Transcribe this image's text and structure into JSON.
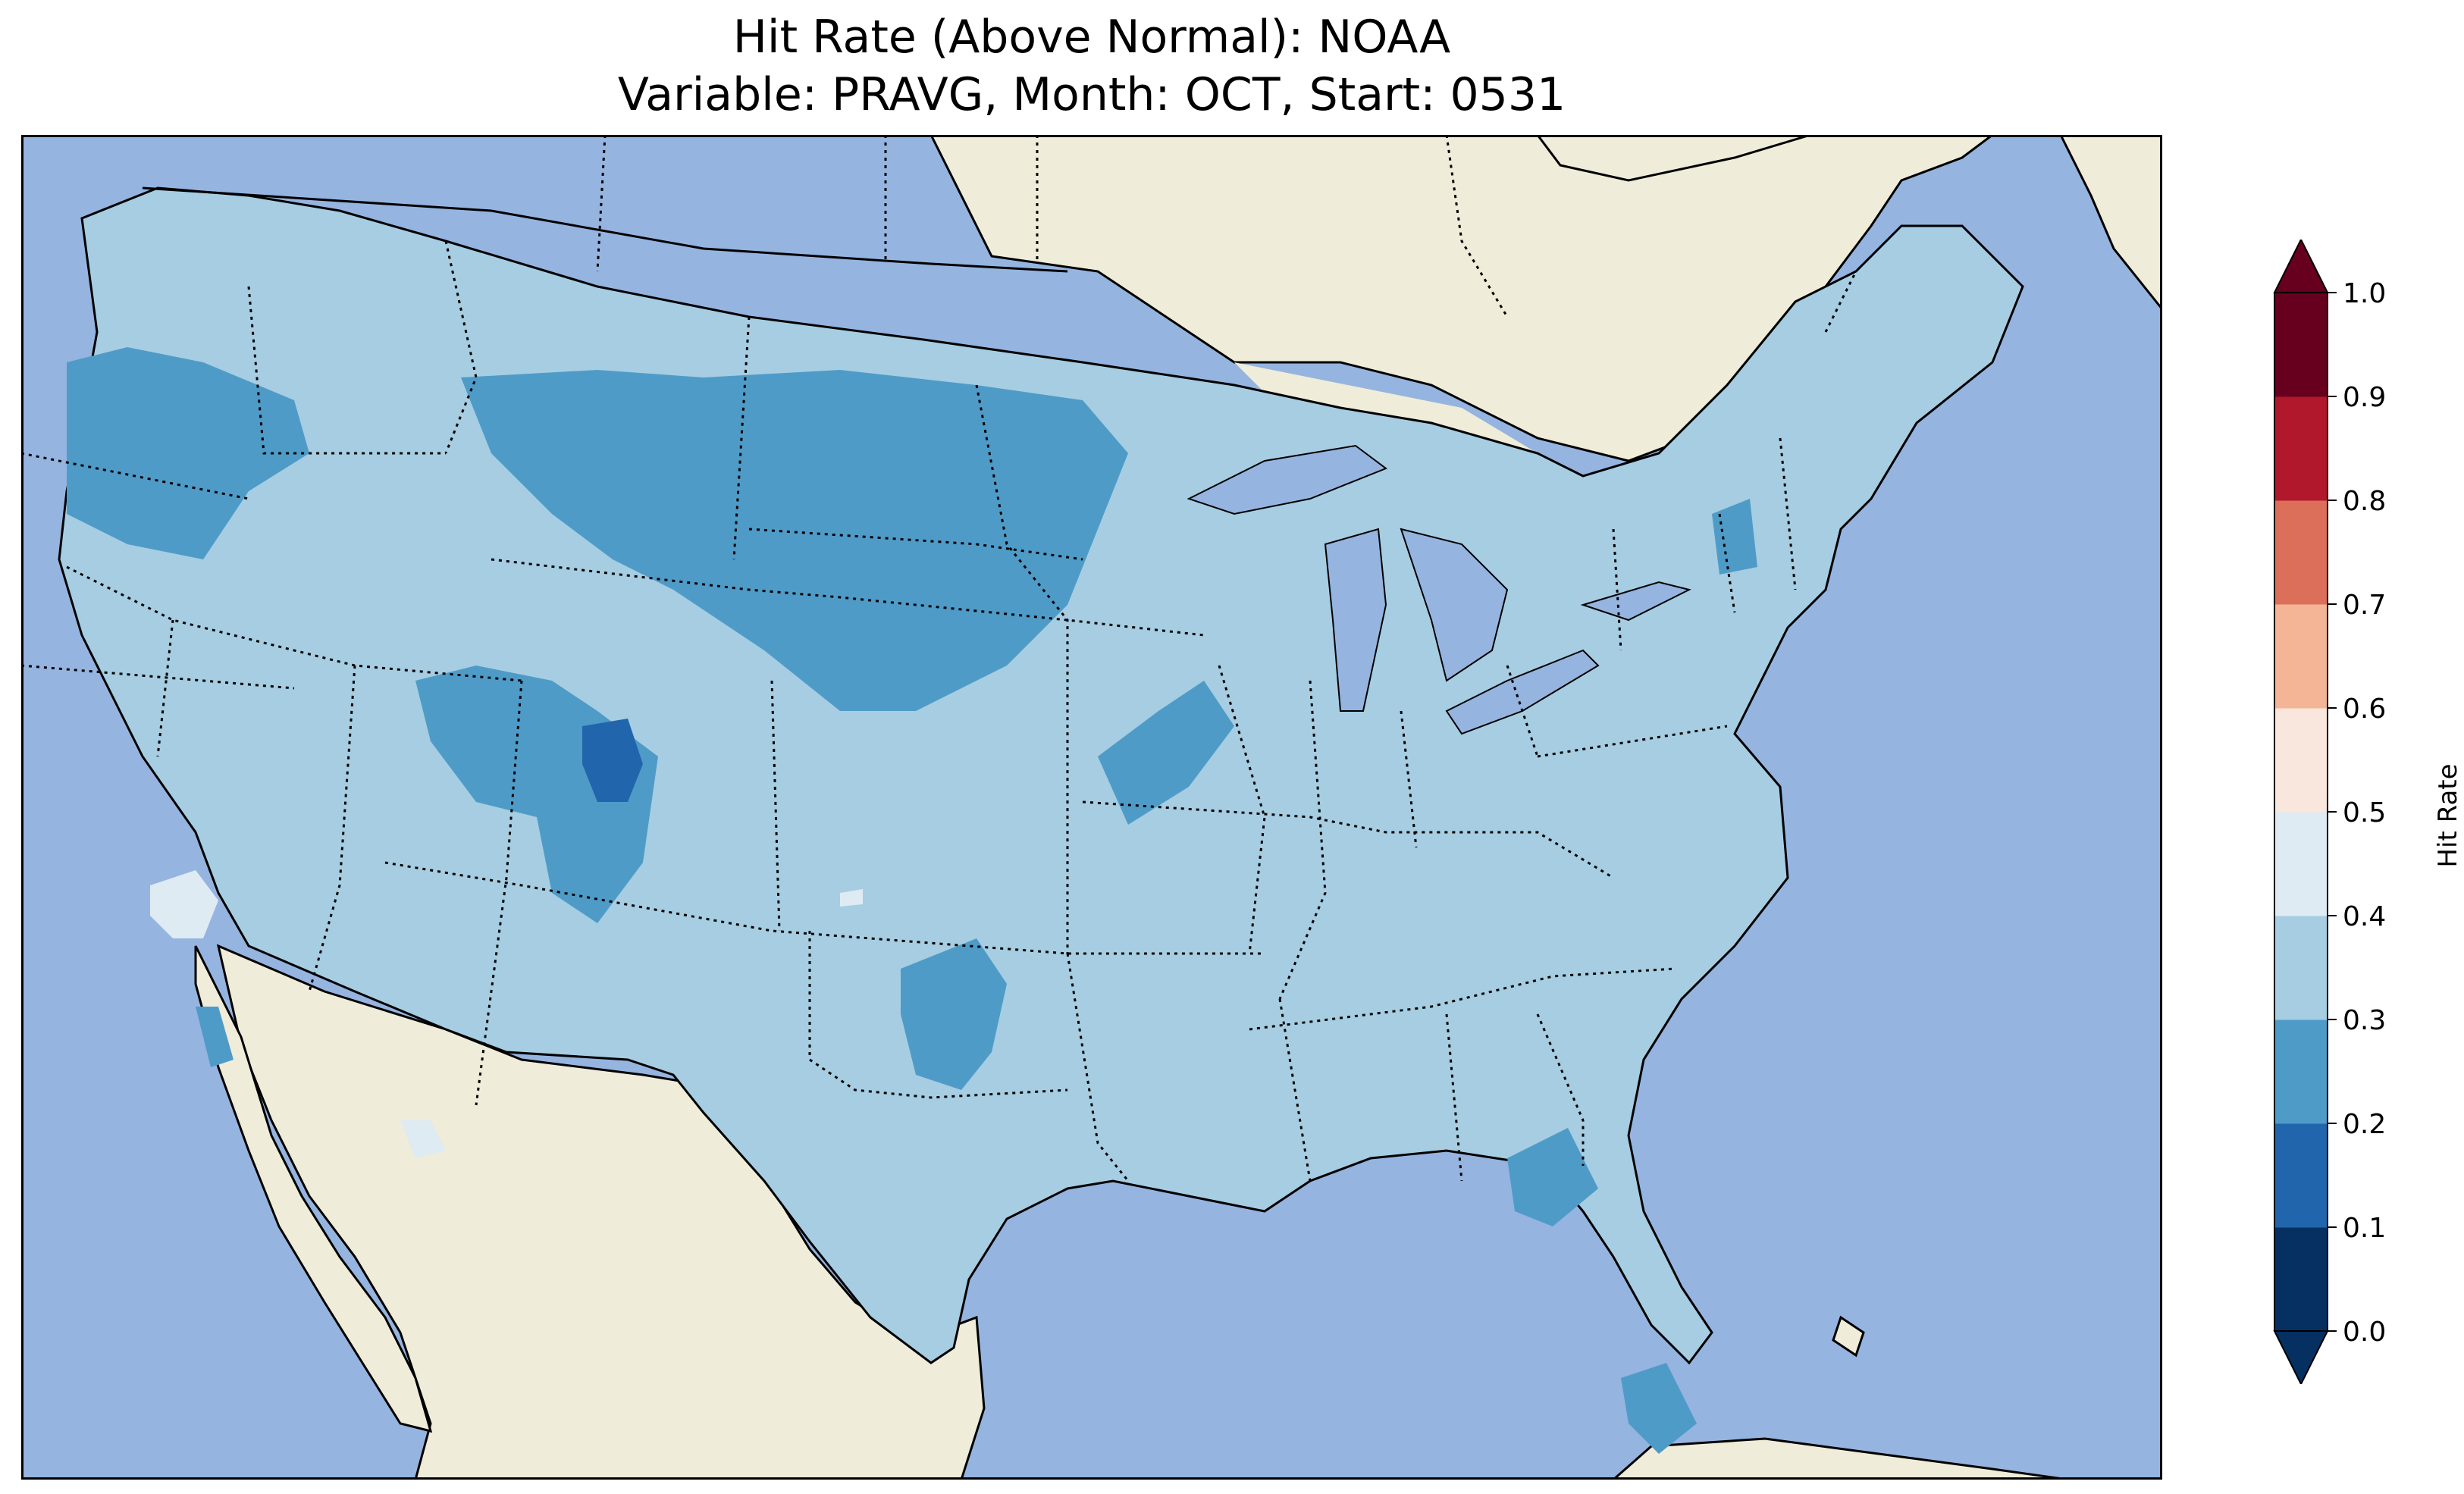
{
  "title_line1": "Hit Rate (Above Normal): NOAA",
  "title_line2": "Variable: PRAVG, Month: OCT, Start: 0531",
  "colors": {
    "ocean": "#95b4e0",
    "land": "#efecd9",
    "lakes": "#95b4e0"
  },
  "colorbar": {
    "label": "Hit Rate",
    "ticks": [
      "0.0",
      "0.1",
      "0.2",
      "0.3",
      "0.4",
      "0.5",
      "0.6",
      "0.7",
      "0.8",
      "0.9",
      "1.0"
    ],
    "bins": [
      {
        "range": [
          0.0,
          0.1
        ],
        "color": "#053061"
      },
      {
        "range": [
          0.1,
          0.2
        ],
        "color": "#2166ac"
      },
      {
        "range": [
          0.2,
          0.3
        ],
        "color": "#4f9bc8"
      },
      {
        "range": [
          0.3,
          0.4
        ],
        "color": "#a6cde2"
      },
      {
        "range": [
          0.4,
          0.5
        ],
        "color": "#deebf2"
      },
      {
        "range": [
          0.5,
          0.6
        ],
        "color": "#f9e6dc"
      },
      {
        "range": [
          0.6,
          0.7
        ],
        "color": "#f4b597"
      },
      {
        "range": [
          0.7,
          0.8
        ],
        "color": "#dc6f59"
      },
      {
        "range": [
          0.8,
          0.9
        ],
        "color": "#b2182b"
      },
      {
        "range": [
          0.9,
          1.0
        ],
        "color": "#67001f"
      }
    ],
    "extend": "both"
  },
  "map_data": {
    "region": "Contiguous United States",
    "dominant_bin": [
      0.3,
      0.4
    ],
    "regions_0_2_to_0_3": [
      "Oregon / northern Idaho",
      "Montana / Wyoming / North Dakota / South Dakota / Nebraska",
      "northern Minnesota",
      "western Colorado / eastern Utah",
      "northern Missouri / Iowa",
      "Oklahoma / north Texas",
      "Georgia",
      "southern Florida",
      "northern New York",
      "southern California coast"
    ],
    "regions_0_1_to_0_2": [
      "northwest Colorado"
    ],
    "regions_0_4_to_0_5": [
      "northern California",
      "southern California / Arizona border",
      "southwest Kansas"
    ]
  }
}
